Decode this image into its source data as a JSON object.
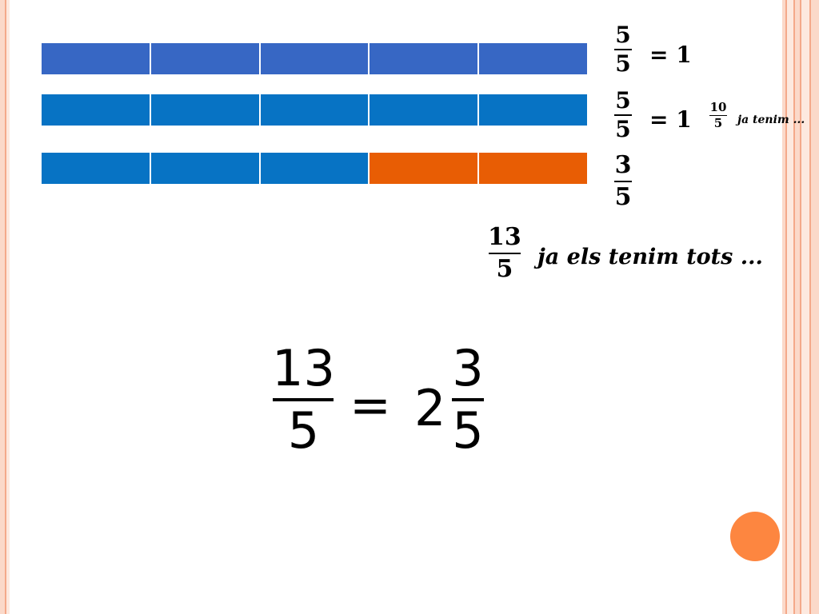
{
  "colors": {
    "bar_blue_dark": "#3767c4",
    "bar_blue": "#0773c4",
    "bar_orange": "#e85d04",
    "accent_circle": "#fd8640"
  },
  "bars": [
    {
      "cells": [
        "#3767c4",
        "#3767c4",
        "#3767c4",
        "#3767c4",
        "#3767c4"
      ]
    },
    {
      "cells": [
        "#0773c4",
        "#0773c4",
        "#0773c4",
        "#0773c4",
        "#0773c4"
      ]
    },
    {
      "cells": [
        "#0773c4",
        "#0773c4",
        "#0773c4",
        "#e85d04",
        "#e85d04"
      ]
    }
  ],
  "row1": {
    "num": "5",
    "den": "5",
    "eq": "= 1"
  },
  "row2": {
    "num": "5",
    "den": "5",
    "eq": "= 1",
    "small_num": "10",
    "small_den": "5",
    "note": "ja tenim ..."
  },
  "row3": {
    "num": "3",
    "den": "5"
  },
  "total": {
    "num": "13",
    "den": "5",
    "note": "ja els  tenim tots ..."
  },
  "result": {
    "num": "13",
    "den": "5",
    "eq": "=",
    "whole": "2",
    "frac_num": "3",
    "frac_den": "5"
  }
}
